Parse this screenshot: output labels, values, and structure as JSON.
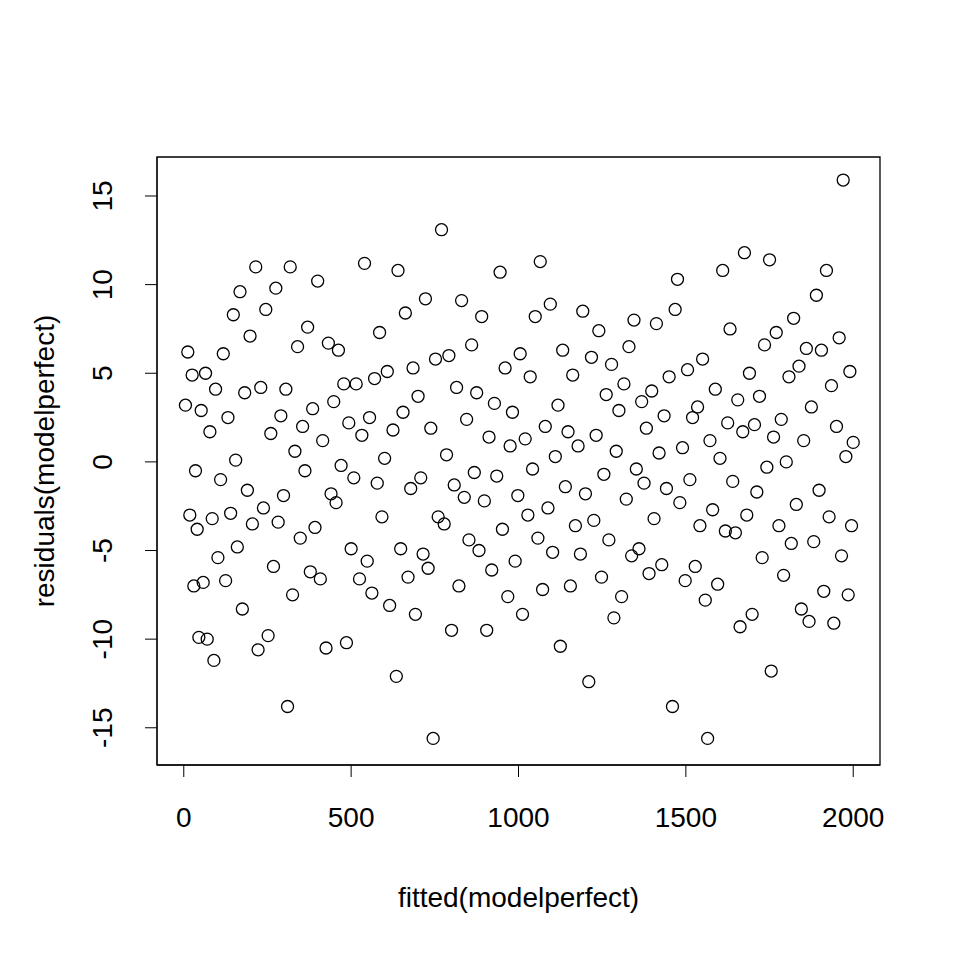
{
  "chart_data": {
    "type": "scatter",
    "xlabel": "fitted(modelperfect)",
    "ylabel": "residuals(modelperfect)",
    "color": "#000000",
    "marker": "open_circle",
    "grid": false,
    "xlim": [
      -80,
      2080
    ],
    "ylim": [
      -17.1,
      17.2
    ],
    "xticks": [
      0,
      500,
      1000,
      1500,
      2000
    ],
    "yticks": [
      -15,
      -10,
      -5,
      0,
      5,
      10,
      15
    ],
    "x": [
      5,
      12,
      18,
      25,
      30,
      35,
      40,
      45,
      52,
      58,
      65,
      70,
      78,
      85,
      90,
      95,
      102,
      110,
      118,
      125,
      132,
      140,
      148,
      155,
      160,
      168,
      175,
      182,
      190,
      198,
      205,
      215,
      222,
      230,
      238,
      245,
      252,
      260,
      268,
      275,
      282,
      290,
      298,
      305,
      310,
      318,
      325,
      332,
      340,
      348,
      355,
      362,
      370,
      378,
      385,
      392,
      400,
      408,
      415,
      425,
      432,
      440,
      448,
      455,
      462,
      470,
      478,
      486,
      493,
      500,
      508,
      515,
      525,
      532,
      540,
      548,
      555,
      562,
      570,
      578,
      585,
      592,
      600,
      608,
      615,
      625,
      635,
      640,
      648,
      655,
      662,
      670,
      678,
      685,
      692,
      700,
      708,
      715,
      722,
      730,
      738,
      745,
      752,
      760,
      770,
      778,
      785,
      792,
      800,
      808,
      815,
      822,
      830,
      838,
      845,
      852,
      860,
      868,
      875,
      882,
      890,
      898,
      905,
      912,
      920,
      928,
      935,
      945,
      952,
      960,
      968,
      975,
      982,
      990,
      998,
      1005,
      1012,
      1020,
      1028,
      1035,
      1042,
      1050,
      1058,
      1065,
      1072,
      1080,
      1088,
      1095,
      1102,
      1110,
      1118,
      1125,
      1132,
      1140,
      1148,
      1155,
      1162,
      1170,
      1178,
      1185,
      1192,
      1200,
      1210,
      1218,
      1225,
      1232,
      1240,
      1248,
      1255,
      1262,
      1270,
      1278,
      1285,
      1292,
      1300,
      1308,
      1315,
      1322,
      1330,
      1338,
      1345,
      1352,
      1360,
      1368,
      1375,
      1382,
      1390,
      1398,
      1405,
      1412,
      1420,
      1428,
      1435,
      1442,
      1450,
      1460,
      1468,
      1475,
      1482,
      1490,
      1498,
      1505,
      1512,
      1520,
      1528,
      1535,
      1542,
      1550,
      1558,
      1565,
      1572,
      1580,
      1588,
      1595,
      1602,
      1610,
      1618,
      1625,
      1632,
      1640,
      1648,
      1655,
      1662,
      1670,
      1675,
      1682,
      1690,
      1698,
      1705,
      1712,
      1720,
      1728,
      1735,
      1742,
      1750,
      1755,
      1762,
      1770,
      1778,
      1785,
      1792,
      1800,
      1808,
      1815,
      1822,
      1830,
      1838,
      1845,
      1852,
      1860,
      1868,
      1875,
      1882,
      1890,
      1898,
      1905,
      1912,
      1920,
      1928,
      1935,
      1942,
      1950,
      1958,
      1965,
      1970,
      1978,
      1985,
      1990,
      1995,
      2000
    ],
    "values": [
      3.2,
      6.2,
      -3.0,
      4.9,
      -7.0,
      -0.5,
      -3.8,
      -9.9,
      2.9,
      -6.8,
      5.0,
      -10.0,
      1.7,
      -3.2,
      -11.2,
      4.1,
      -5.4,
      -1.0,
      6.1,
      -6.7,
      2.5,
      -2.9,
      8.3,
      0.1,
      -4.8,
      9.6,
      -8.3,
      3.9,
      -1.6,
      7.1,
      -3.5,
      11.0,
      -10.6,
      4.2,
      -2.6,
      8.6,
      -9.8,
      1.6,
      -5.9,
      9.8,
      -3.4,
      2.6,
      -1.9,
      4.1,
      -13.8,
      11.0,
      -7.5,
      0.6,
      6.5,
      -4.3,
      2.0,
      -0.5,
      7.6,
      -6.2,
      3.0,
      -3.7,
      10.2,
      -6.6,
      1.2,
      -10.5,
      6.7,
      -1.8,
      3.4,
      -2.3,
      6.3,
      -0.2,
      4.4,
      -10.2,
      2.2,
      -4.9,
      -0.9,
      4.4,
      -6.6,
      1.5,
      11.2,
      -5.6,
      2.5,
      -7.4,
      4.7,
      -1.2,
      7.3,
      -3.1,
      0.2,
      5.1,
      -8.1,
      1.8,
      -12.1,
      10.8,
      -4.9,
      2.8,
      8.4,
      -6.5,
      -1.5,
      5.3,
      -8.6,
      3.7,
      -0.9,
      -5.2,
      9.2,
      -6.0,
      1.9,
      -15.6,
      5.8,
      -3.1,
      13.1,
      -3.5,
      0.4,
      6.0,
      -9.5,
      -1.3,
      4.2,
      -7.0,
      9.1,
      -2.0,
      2.4,
      -4.4,
      6.6,
      -0.6,
      3.9,
      -5.0,
      8.2,
      -2.2,
      -9.5,
      1.4,
      -6.1,
      3.3,
      -0.8,
      10.7,
      -3.8,
      5.3,
      -7.6,
      0.9,
      2.8,
      -5.6,
      -1.9,
      6.1,
      -8.6,
      1.3,
      -3.0,
      4.8,
      -0.4,
      8.2,
      -4.3,
      11.3,
      -7.2,
      2.0,
      -2.6,
      8.9,
      -5.1,
      0.3,
      3.2,
      -10.4,
      6.3,
      -1.4,
      1.7,
      -7.0,
      4.9,
      -3.6,
      0.9,
      -5.2,
      8.5,
      -1.8,
      -12.4,
      5.9,
      -3.3,
      1.5,
      7.4,
      -6.5,
      -0.7,
      3.8,
      -4.4,
      5.5,
      -8.8,
      0.6,
      2.9,
      -7.6,
      4.4,
      -2.1,
      6.5,
      -5.3,
      8.0,
      -0.4,
      -4.9,
      3.4,
      -1.2,
      1.9,
      -6.3,
      4.0,
      -3.2,
      7.8,
      0.5,
      -5.8,
      2.6,
      -1.5,
      4.8,
      -13.8,
      8.6,
      10.3,
      -2.3,
      0.8,
      -6.7,
      5.2,
      -1.0,
      2.5,
      -5.9,
      3.1,
      -3.6,
      5.8,
      -7.8,
      -15.6,
      1.2,
      -2.7,
      4.1,
      -6.9,
      0.2,
      10.8,
      -3.9,
      2.2,
      7.5,
      -1.1,
      -4.0,
      3.5,
      -9.3,
      1.7,
      11.8,
      -3.0,
      5.0,
      -8.6,
      2.1,
      -1.7,
      3.7,
      -5.4,
      6.6,
      -0.3,
      11.4,
      -11.8,
      1.4,
      7.3,
      -3.6,
      2.4,
      -6.4,
      0.0,
      4.8,
      -4.6,
      8.1,
      -2.4,
      5.4,
      -8.3,
      1.2,
      6.4,
      -9.0,
      3.1,
      -4.5,
      9.4,
      -1.6,
      6.3,
      -7.3,
      10.8,
      -3.1,
      4.3,
      -9.1,
      2.0,
      7.0,
      -5.3,
      15.9,
      0.3,
      -7.5,
      5.1,
      -3.6,
      1.1
    ]
  }
}
